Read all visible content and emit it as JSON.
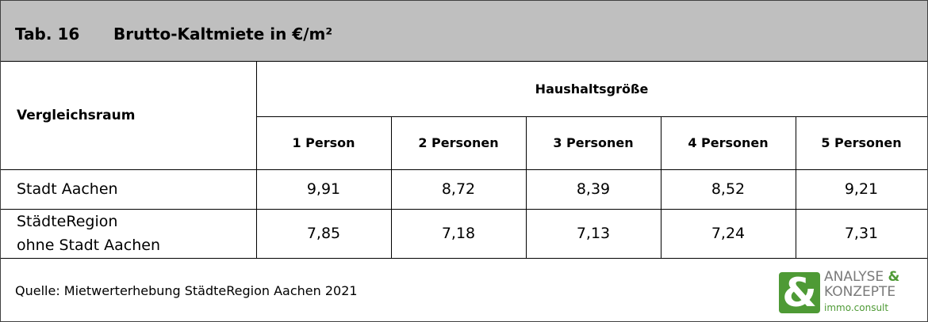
{
  "title": {
    "number": "Tab. 16",
    "text": "Brutto-Kaltmiete in €/m²"
  },
  "table": {
    "row_header": "Vergleichsraum",
    "group_header": "Haushaltsgröße",
    "columns": [
      "1 Person",
      "2 Personen",
      "3 Personen",
      "4 Personen",
      "5 Personen"
    ],
    "rows": [
      {
        "label": "Stadt Aachen",
        "values": [
          "9,91",
          "8,72",
          "8,39",
          "8,52",
          "9,21"
        ]
      },
      {
        "label": "StädteRegion\nohne Stadt Aachen",
        "values": [
          "7,85",
          "7,18",
          "7,13",
          "7,24",
          "7,31"
        ]
      }
    ]
  },
  "footer": {
    "source": "Quelle: Mietwerterhebung StädteRegion Aachen 2021",
    "logo": {
      "symbol": "&",
      "line1": "ANALYSE",
      "amp": "&",
      "line2": "KONZEPTE",
      "line3": "immo.consult"
    }
  }
}
